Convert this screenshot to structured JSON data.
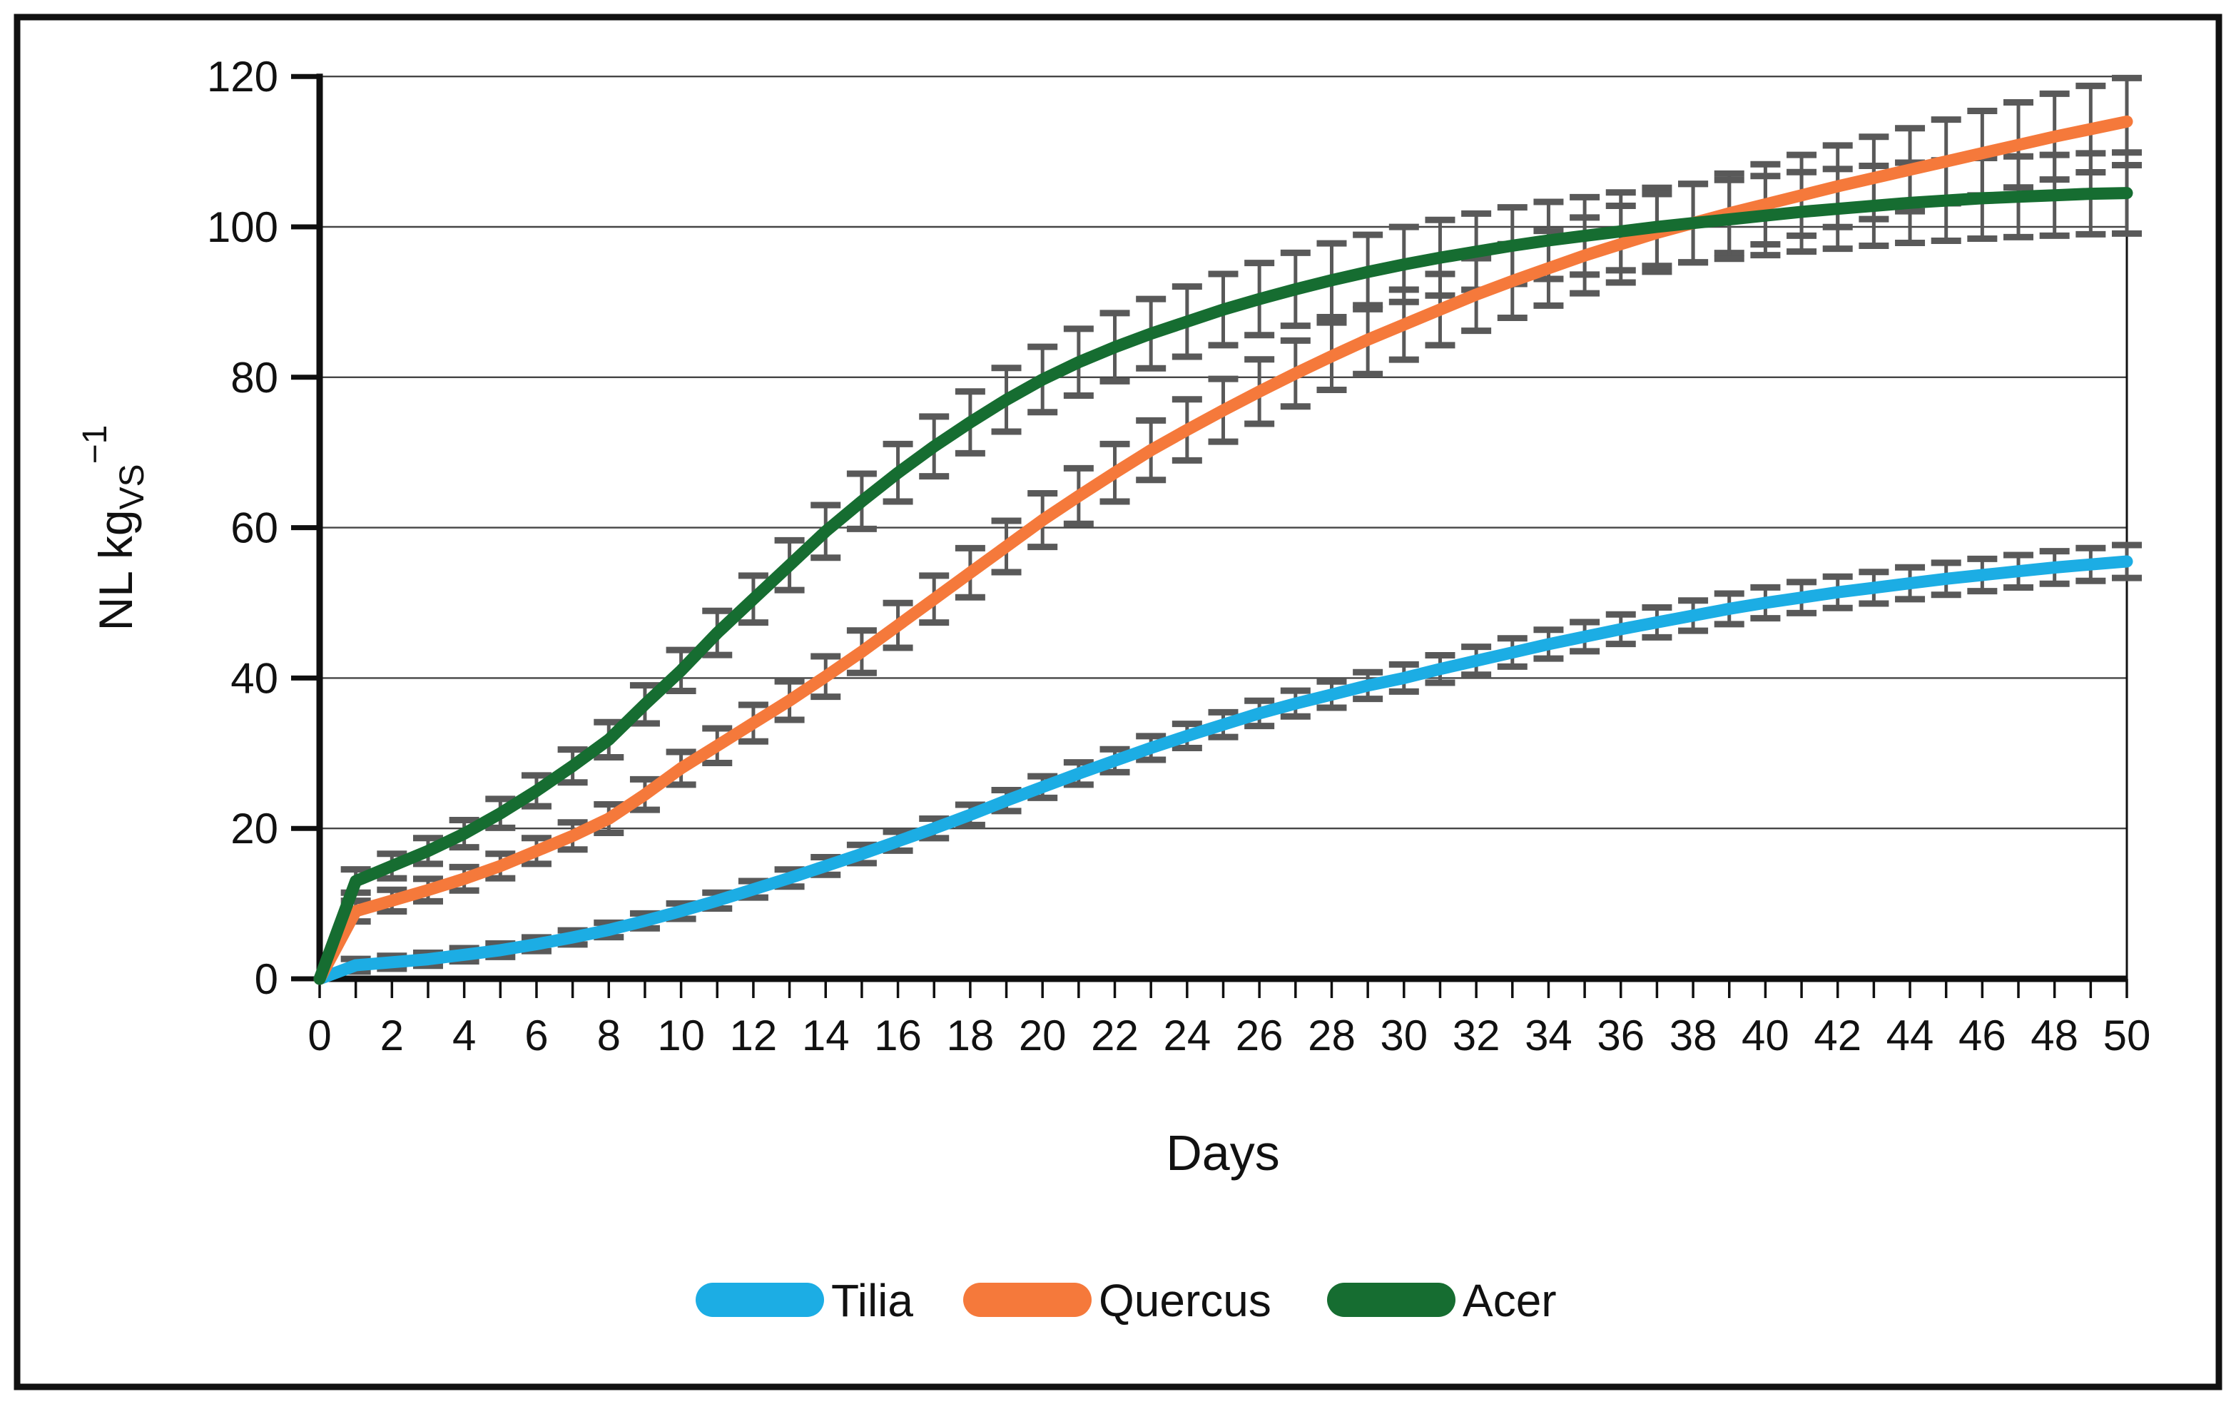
{
  "chart_data": {
    "type": "line",
    "title": "",
    "xlabel": "Days",
    "ylabel": "NL kg_VS^-1",
    "ylabel_parts": {
      "main": "NL kg",
      "sub": "VS",
      "sup": "−1"
    },
    "x_days": [
      0,
      1,
      2,
      3,
      4,
      5,
      6,
      7,
      8,
      9,
      10,
      11,
      12,
      13,
      14,
      15,
      16,
      17,
      18,
      19,
      20,
      21,
      22,
      23,
      24,
      25,
      26,
      27,
      28,
      29,
      30,
      31,
      32,
      33,
      34,
      35,
      36,
      37,
      38,
      39,
      40,
      41,
      42,
      43,
      44,
      45,
      46,
      47,
      48,
      49,
      50
    ],
    "xtick_labels": [
      0,
      2,
      4,
      6,
      8,
      10,
      12,
      14,
      16,
      18,
      20,
      22,
      24,
      26,
      28,
      30,
      32,
      34,
      36,
      38,
      40,
      42,
      44,
      46,
      48,
      50
    ],
    "yticks": [
      0,
      20,
      40,
      60,
      80,
      100,
      120
    ],
    "xlim": [
      0,
      50
    ],
    "ylim": [
      0,
      120
    ],
    "grid": true,
    "legend_position": "bottom",
    "error_bar_color": "#595959",
    "series": [
      {
        "name": "Tilia",
        "color": "#1CADE4",
        "values": [
          0,
          1.8,
          2.2,
          2.6,
          3.2,
          3.8,
          4.6,
          5.5,
          6.5,
          7.7,
          9,
          10.4,
          11.9,
          13.4,
          15,
          16.6,
          18.3,
          20,
          21.8,
          23.7,
          25.5,
          27.3,
          29,
          30.7,
          32.3,
          33.8,
          35.3,
          36.6,
          37.8,
          39,
          40,
          41.2,
          42.3,
          43.4,
          44.5,
          45.5,
          46.5,
          47.4,
          48.3,
          49.2,
          50,
          50.7,
          51.4,
          52,
          52.6,
          53.2,
          53.7,
          54.2,
          54.7,
          55.1,
          55.5
        ],
        "error_bar": {
          "base": 0.8,
          "per_unit": 0.025
        }
      },
      {
        "name": "Quercus",
        "color": "#F5793B",
        "values": [
          0,
          9,
          10.4,
          11.8,
          13.3,
          15,
          17,
          19,
          21.3,
          24.5,
          28,
          31,
          34,
          37,
          40.2,
          43.5,
          47,
          50.5,
          54,
          57.5,
          61,
          64.2,
          67.3,
          70.3,
          73,
          75.6,
          78.1,
          80.5,
          82.8,
          85,
          87,
          89,
          91,
          92.8,
          94.5,
          96.2,
          97.7,
          99.2,
          100.5,
          101.8,
          103,
          104.2,
          105.4,
          106.5,
          107.6,
          108.7,
          109.8,
          110.9,
          112,
          113,
          114
        ],
        "error_bar": {
          "base": 1.0,
          "per_unit": 0.042
        }
      },
      {
        "name": "Acer",
        "color": "#166D31",
        "values": [
          0,
          13,
          15,
          17,
          19.3,
          22,
          25,
          28.3,
          31.8,
          36.5,
          41,
          46,
          50.5,
          55,
          59.5,
          63.5,
          67.3,
          70.8,
          74,
          77,
          79.7,
          82,
          84,
          85.8,
          87.4,
          89,
          90.4,
          91.7,
          92.9,
          94,
          95,
          95.9,
          96.7,
          97.5,
          98.2,
          98.8,
          99.4,
          100,
          100.5,
          101,
          101.5,
          102,
          102.4,
          102.8,
          103.2,
          103.5,
          103.8,
          104,
          104.2,
          104.4,
          104.5
        ],
        "error_bar": {
          "base": 1.0,
          "per_unit": 0.042
        }
      }
    ]
  },
  "style": {
    "background": "#ffffff",
    "frame_color": "#111111",
    "axis_color": "#0f0f0f",
    "grid_color": "#454545",
    "text_color": "#111111"
  }
}
